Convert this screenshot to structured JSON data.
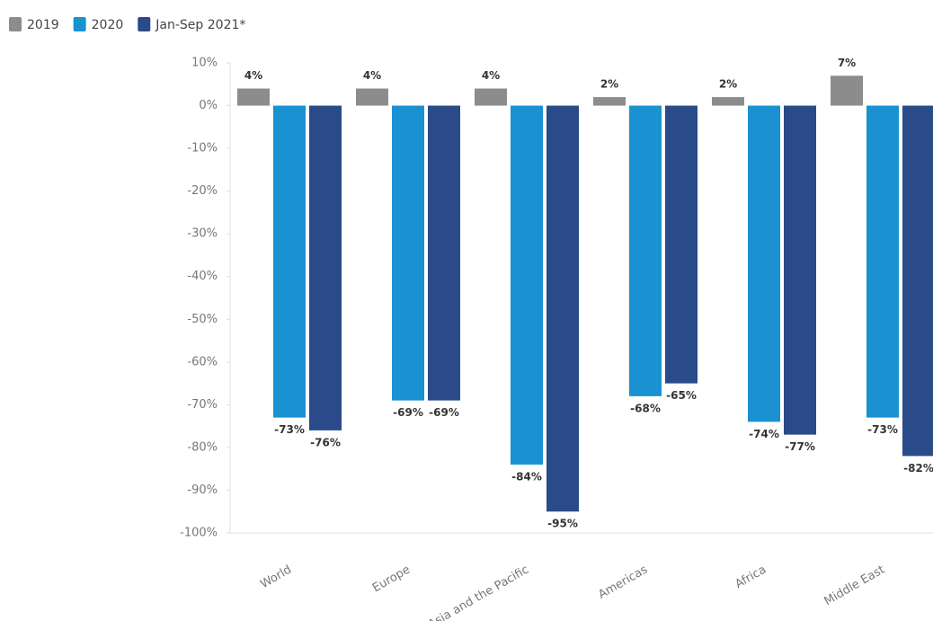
{
  "chart_data": {
    "type": "bar",
    "categories": [
      "World",
      "Europe",
      "Asia and the Pacific",
      "Americas",
      "Africa",
      "Middle East"
    ],
    "series": [
      {
        "name": "2019",
        "color": "#8c8c8c",
        "values": [
          4,
          4,
          4,
          2,
          2,
          7
        ],
        "value_labels": [
          "4%",
          "4%",
          "4%",
          "2%",
          "2%",
          "7%"
        ]
      },
      {
        "name": "2020",
        "color": "#1a91d0",
        "values": [
          -73,
          -69,
          -84,
          -68,
          -74,
          -73
        ],
        "value_labels": [
          "-73%",
          "-69%",
          "-84%",
          "-68%",
          "-74%",
          "-73%"
        ]
      },
      {
        "name": "Jan-Sep 2021*",
        "color": "#2a4a8a",
        "values": [
          -76,
          -69,
          -95,
          -65,
          -77,
          -82
        ],
        "value_labels": [
          "-76%",
          "-69%",
          "-95%",
          "-65%",
          "-77%",
          "-82%"
        ]
      }
    ],
    "ylim": [
      -100,
      10
    ],
    "yticks": [
      {
        "value": 10,
        "label": "10%"
      },
      {
        "value": 0,
        "label": "0%"
      },
      {
        "value": -10,
        "label": "-10%"
      },
      {
        "value": -20,
        "label": "-20%"
      },
      {
        "value": -30,
        "label": "-30%"
      },
      {
        "value": -40,
        "label": "-40%"
      },
      {
        "value": -50,
        "label": "-50%"
      },
      {
        "value": -60,
        "label": "-60%"
      },
      {
        "value": -70,
        "label": "-70%"
      },
      {
        "value": -80,
        "label": "-80%"
      },
      {
        "value": -90,
        "label": "-90%"
      },
      {
        "value": -100,
        "label": "-100%"
      }
    ],
    "legend": "top-left"
  }
}
